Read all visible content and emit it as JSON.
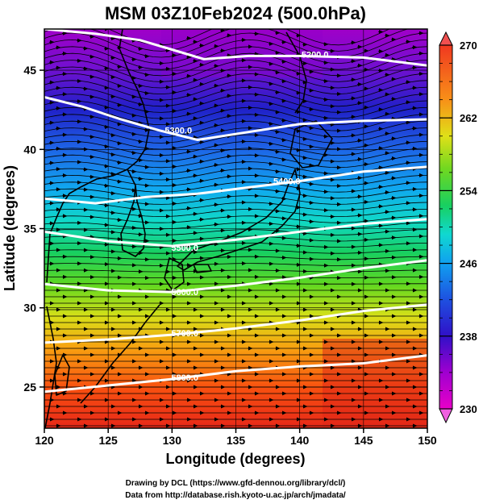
{
  "title": "MSM 03Z10Feb2024 (500.0hPa)",
  "chart_data": {
    "type": "heatmap",
    "title": "MSM 03Z10Feb2024 (500.0hPa)",
    "xlabel": "Longitude (degrees)",
    "ylabel": "Latitude  (degrees)",
    "xlim": [
      120,
      150
    ],
    "ylim": [
      22.4,
      47.6
    ],
    "x_ticks": [
      "120",
      "125",
      "130",
      "135",
      "140",
      "145",
      "150"
    ],
    "y_ticks": [
      "25",
      "30",
      "35",
      "40",
      "45"
    ],
    "grid": true,
    "colorbar": {
      "min": 230,
      "max": 270,
      "ticks": [
        "230",
        "238",
        "246",
        "254",
        "262",
        "270"
      ]
    },
    "contours": [
      {
        "label": "5200.0",
        "points": [
          [
            120.0,
            47.6
          ],
          [
            124.0,
            47.3
          ],
          [
            127.5,
            46.9
          ],
          [
            130.0,
            46.3
          ],
          [
            132.5,
            45.7
          ],
          [
            136.0,
            45.9
          ],
          [
            140.0,
            45.9
          ],
          [
            145.0,
            45.8
          ],
          [
            150.0,
            45.3
          ]
        ]
      },
      {
        "label": "5300.0",
        "points": [
          [
            120.0,
            43.3
          ],
          [
            123.0,
            42.7
          ],
          [
            126.0,
            41.9
          ],
          [
            129.0,
            41.2
          ],
          [
            132.0,
            40.6
          ],
          [
            136.0,
            41.1
          ],
          [
            140.0,
            41.6
          ],
          [
            145.0,
            41.8
          ],
          [
            150.0,
            41.9
          ]
        ]
      },
      {
        "label": "5400.0",
        "points": [
          [
            120.0,
            36.9
          ],
          [
            124.0,
            36.6
          ],
          [
            128.0,
            37.0
          ],
          [
            132.0,
            37.2
          ],
          [
            136.0,
            37.6
          ],
          [
            140.0,
            38.0
          ],
          [
            145.0,
            38.6
          ],
          [
            150.0,
            38.9
          ]
        ]
      },
      {
        "label": "5500.0",
        "points": [
          [
            120.0,
            34.8
          ],
          [
            125.0,
            34.2
          ],
          [
            130.0,
            33.9
          ],
          [
            135.0,
            34.3
          ],
          [
            140.0,
            34.8
          ],
          [
            145.0,
            35.3
          ],
          [
            150.0,
            35.6
          ]
        ]
      },
      {
        "label": "5600.0",
        "points": [
          [
            120.0,
            31.5
          ],
          [
            125.0,
            31.1
          ],
          [
            130.0,
            31.0
          ],
          [
            135.0,
            31.4
          ],
          [
            140.0,
            31.9
          ],
          [
            145.0,
            32.5
          ],
          [
            150.0,
            33.0
          ]
        ]
      },
      {
        "label": "5700.0",
        "points": [
          [
            120.0,
            27.8
          ],
          [
            125.0,
            28.0
          ],
          [
            130.0,
            28.3
          ],
          [
            135.0,
            28.7
          ],
          [
            140.0,
            29.2
          ],
          [
            145.0,
            29.8
          ],
          [
            150.0,
            30.2
          ]
        ]
      },
      {
        "label": "5800.0",
        "points": [
          [
            120.0,
            24.7
          ],
          [
            125.0,
            25.1
          ],
          [
            130.0,
            25.5
          ],
          [
            135.0,
            26.0
          ],
          [
            140.0,
            26.3
          ],
          [
            145.0,
            26.5
          ],
          [
            150.0,
            27.0
          ]
        ]
      }
    ],
    "contour_labels": [
      {
        "text": "5200.0",
        "lon": 141.2,
        "lat": 46.0
      },
      {
        "text": "5300.0",
        "lon": 130.5,
        "lat": 41.2
      },
      {
        "text": "5400.0",
        "lon": 139.0,
        "lat": 38.0
      },
      {
        "text": "5500.0",
        "lon": 131.0,
        "lat": 33.8
      },
      {
        "text": "5600.0",
        "lon": 131.0,
        "lat": 31.0
      },
      {
        "text": "5700.0",
        "lon": 131.0,
        "lat": 28.4
      },
      {
        "text": "5800.0",
        "lon": 131.0,
        "lat": 25.6
      }
    ]
  },
  "credit": {
    "line1": "Drawing by DCL (https://www.gfd-dennou.org/library/dcl/)",
    "line2": "Data from http://database.rish.kyoto-u.ac.jp/arch/jmadata/"
  }
}
